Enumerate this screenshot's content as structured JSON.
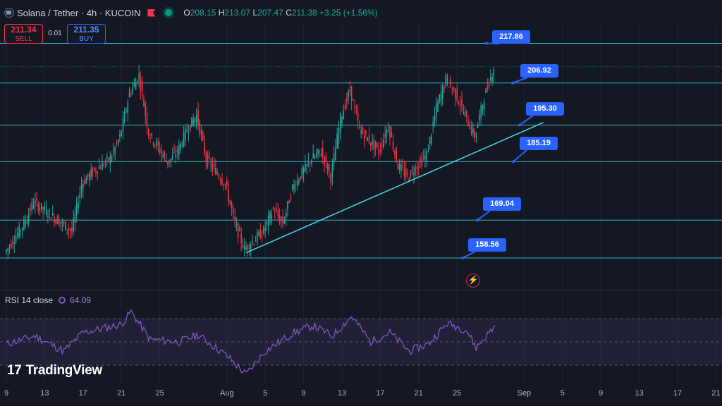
{
  "header": {
    "symbol_title": "Solana / Tether · 4h · KUCOIN",
    "ohlc": {
      "o_label": "O",
      "o": "208.15",
      "h_label": "H",
      "h": "213.07",
      "l_label": "L",
      "l": "207.47",
      "c_label": "C",
      "c": "211.38",
      "change": "+3.25 (+1.56%)"
    },
    "colors": {
      "up": "#26a69a",
      "down": "#f23645",
      "accent": "#2962ff"
    }
  },
  "trade": {
    "sell_price": "211.34",
    "sell_label": "SELL",
    "spread": "0.01",
    "buy_price": "211.35",
    "buy_label": "BUY"
  },
  "rsi": {
    "label": "RSI 14 close",
    "value": "64.09",
    "line_color": "#7e57c2",
    "band_upper": 70,
    "band_lower": 30,
    "middle": 50
  },
  "brand": {
    "text": "TradingView",
    "icon": "tradingview-logo-icon"
  },
  "chart_data": {
    "type": "candlestick",
    "title": "",
    "timeframe": "4h",
    "x_ticks": [
      "9",
      "13",
      "17",
      "21",
      "25",
      "Aug",
      "5",
      "9",
      "13",
      "17",
      "21",
      "25",
      "Sep",
      "5",
      "9",
      "13",
      "17",
      "21"
    ],
    "ylim": [
      150,
      224
    ],
    "price_path": [
      {
        "date": "Jul 9",
        "price": 160
      },
      {
        "date": "Jul 11",
        "price": 168
      },
      {
        "date": "Jul 12",
        "price": 174
      },
      {
        "date": "Jul 14",
        "price": 170
      },
      {
        "date": "Jul 16",
        "price": 166
      },
      {
        "date": "Jul 17",
        "price": 179
      },
      {
        "date": "Jul 18",
        "price": 182
      },
      {
        "date": "Jul 20",
        "price": 186
      },
      {
        "date": "Jul 21",
        "price": 192
      },
      {
        "date": "Jul 22",
        "price": 204
      },
      {
        "date": "Jul 23",
        "price": 209
      },
      {
        "date": "Jul 24",
        "price": 193
      },
      {
        "date": "Jul 26",
        "price": 185
      },
      {
        "date": "Jul 27",
        "price": 188
      },
      {
        "date": "Jul 28",
        "price": 194
      },
      {
        "date": "Jul 29",
        "price": 198
      },
      {
        "date": "Jul 30",
        "price": 186
      },
      {
        "date": "Aug 1",
        "price": 179
      },
      {
        "date": "Aug 2",
        "price": 168
      },
      {
        "date": "Aug 3",
        "price": 161
      },
      {
        "date": "Aug 5",
        "price": 166
      },
      {
        "date": "Aug 6",
        "price": 172
      },
      {
        "date": "Aug 7",
        "price": 168
      },
      {
        "date": "Aug 8",
        "price": 178
      },
      {
        "date": "Aug 9",
        "price": 182
      },
      {
        "date": "Aug 10",
        "price": 186
      },
      {
        "date": "Aug 11",
        "price": 188
      },
      {
        "date": "Aug 12",
        "price": 181
      },
      {
        "date": "Aug 13",
        "price": 197
      },
      {
        "date": "Aug 14",
        "price": 205
      },
      {
        "date": "Aug 15",
        "price": 194
      },
      {
        "date": "Aug 16",
        "price": 191
      },
      {
        "date": "Aug 17",
        "price": 188
      },
      {
        "date": "Aug 18",
        "price": 195
      },
      {
        "date": "Aug 19",
        "price": 184
      },
      {
        "date": "Aug 20",
        "price": 181
      },
      {
        "date": "Aug 21",
        "price": 184
      },
      {
        "date": "Aug 22",
        "price": 187
      },
      {
        "date": "Aug 23",
        "price": 200
      },
      {
        "date": "Aug 24",
        "price": 208
      },
      {
        "date": "Aug 25",
        "price": 204
      },
      {
        "date": "Aug 26",
        "price": 198
      },
      {
        "date": "Aug 27",
        "price": 192
      },
      {
        "date": "Aug 28",
        "price": 203
      },
      {
        "date": "Aug 29",
        "price": 211.38
      }
    ],
    "horizontal_levels": [
      217.86,
      206.92,
      195.3,
      185.19,
      169.04,
      158.56
    ],
    "level_labels": [
      "217.86",
      "206.92",
      "195.30",
      "185.19",
      "169.04",
      "158.56"
    ],
    "trendline": [
      {
        "date": "Aug 3",
        "price": 160
      },
      {
        "date": "Sep 3",
        "price": 196
      }
    ],
    "current_price": 211.38,
    "rsi_path": [
      {
        "date": "Jul 9",
        "value": 48
      },
      {
        "date": "Jul 12",
        "value": 55
      },
      {
        "date": "Jul 15",
        "value": 42
      },
      {
        "date": "Jul 17",
        "value": 58
      },
      {
        "date": "Jul 21",
        "value": 65
      },
      {
        "date": "Jul 22",
        "value": 76
      },
      {
        "date": "Jul 24",
        "value": 52
      },
      {
        "date": "Jul 27",
        "value": 50
      },
      {
        "date": "Jul 29",
        "value": 56
      },
      {
        "date": "Aug 1",
        "value": 38
      },
      {
        "date": "Aug 3",
        "value": 22
      },
      {
        "date": "Aug 5",
        "value": 42
      },
      {
        "date": "Aug 8",
        "value": 58
      },
      {
        "date": "Aug 10",
        "value": 64
      },
      {
        "date": "Aug 12",
        "value": 55
      },
      {
        "date": "Aug 14",
        "value": 72
      },
      {
        "date": "Aug 16",
        "value": 50
      },
      {
        "date": "Aug 18",
        "value": 58
      },
      {
        "date": "Aug 20",
        "value": 42
      },
      {
        "date": "Aug 22",
        "value": 48
      },
      {
        "date": "Aug 24",
        "value": 66
      },
      {
        "date": "Aug 26",
        "value": 60
      },
      {
        "date": "Aug 27",
        "value": 45
      },
      {
        "date": "Aug 29",
        "value": 64.09
      }
    ]
  }
}
